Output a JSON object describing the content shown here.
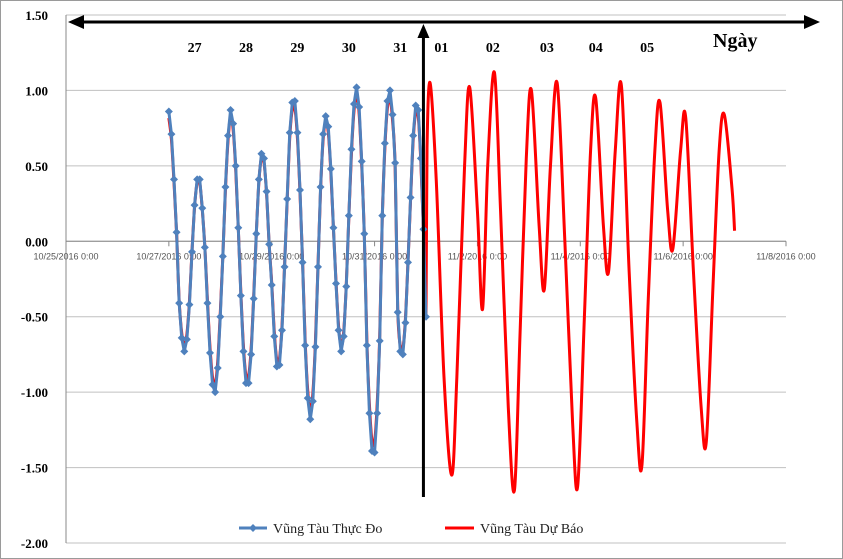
{
  "chart_data": {
    "type": "line",
    "title": "",
    "xlabel": "",
    "ylabel": "",
    "ylim": [
      -2.0,
      1.5
    ],
    "y_ticks": [
      "1.50",
      "1.00",
      "0.50",
      "0.00",
      "-0.50",
      "-1.00",
      "-1.50",
      "-2.00"
    ],
    "y_tick_values": [
      1.5,
      1.0,
      0.5,
      0.0,
      -0.5,
      -1.0,
      -1.5,
      -2.0
    ],
    "x_tick_labels": [
      "10/25/2016 0:00",
      "10/27/2016 0:00",
      "10/29/2016 0:00",
      "10/31/2016 0:00",
      "11/2/2016 0:00",
      "11/4/2016 0:00",
      "11/6/2016 0:00",
      "11/8/2016 0:00"
    ],
    "x_tick_values": [
      0,
      2,
      4,
      6,
      8,
      10,
      12,
      14
    ],
    "day_labels": [
      "27",
      "28",
      "29",
      "30",
      "31",
      "01",
      "02",
      "03",
      "04",
      "05"
    ],
    "day_label_values": [
      2.5,
      3.5,
      4.5,
      5.5,
      6.5,
      7.3,
      8.3,
      9.35,
      10.3,
      11.3
    ],
    "axis_title": "Ngày",
    "divider_x": 6.95,
    "observed_series": {
      "name": "Vũng Tàu Thực Đo",
      "color": "#4f81bd",
      "x": [
        2.0,
        2.05,
        2.1,
        2.15,
        2.2,
        2.25,
        2.3,
        2.35,
        2.4,
        2.45,
        2.5,
        2.55,
        2.6,
        2.65,
        2.7,
        2.75,
        2.8,
        2.85,
        2.9,
        2.95,
        3.0,
        3.05,
        3.1,
        3.15,
        3.2,
        3.25,
        3.3,
        3.35,
        3.4,
        3.45,
        3.5,
        3.55,
        3.6,
        3.65,
        3.7,
        3.75,
        3.8,
        3.85,
        3.9,
        3.95,
        4.0,
        4.05,
        4.1,
        4.15,
        4.2,
        4.25,
        4.3,
        4.35,
        4.4,
        4.45,
        4.5,
        4.55,
        4.6,
        4.65,
        4.7,
        4.75,
        4.8,
        4.85,
        4.9,
        4.95,
        5.0,
        5.05,
        5.1,
        5.15,
        5.2,
        5.25,
        5.3,
        5.35,
        5.4,
        5.45,
        5.5,
        5.55,
        5.6,
        5.65,
        5.7,
        5.75,
        5.8,
        5.85,
        5.9,
        5.95,
        6.0,
        6.05,
        6.1,
        6.15,
        6.2,
        6.25,
        6.3,
        6.35,
        6.4,
        6.45,
        6.5,
        6.55,
        6.6,
        6.65,
        6.7,
        6.75,
        6.8,
        6.85,
        6.9,
        6.95,
        7.0
      ],
      "y": [
        0.86,
        0.71,
        0.41,
        0.06,
        -0.41,
        -0.64,
        -0.73,
        -0.65,
        -0.42,
        -0.07,
        0.24,
        0.41,
        0.41,
        0.22,
        -0.04,
        -0.41,
        -0.74,
        -0.95,
        -1.0,
        -0.84,
        -0.5,
        -0.1,
        0.36,
        0.7,
        0.87,
        0.78,
        0.5,
        0.09,
        -0.36,
        -0.73,
        -0.94,
        -0.94,
        -0.75,
        -0.38,
        0.05,
        0.41,
        0.58,
        0.55,
        0.33,
        -0.02,
        -0.29,
        -0.63,
        -0.83,
        -0.82,
        -0.59,
        -0.17,
        0.28,
        0.72,
        0.92,
        0.93,
        0.72,
        0.34,
        -0.14,
        -0.69,
        -1.04,
        -1.18,
        -1.06,
        -0.7,
        -0.17,
        0.36,
        0.71,
        0.83,
        0.76,
        0.48,
        0.09,
        -0.28,
        -0.59,
        -0.73,
        -0.63,
        -0.3,
        0.17,
        0.61,
        0.91,
        1.02,
        0.89,
        0.53,
        0.05,
        -0.69,
        -1.14,
        -1.39,
        -1.4,
        -1.14,
        -0.66,
        0.17,
        0.65,
        0.93,
        1.0,
        0.84,
        0.52,
        -0.47,
        -0.73,
        -0.75,
        -0.54,
        -0.14,
        0.29,
        0.7,
        0.9,
        0.87,
        0.55,
        0.08,
        -0.5
      ]
    },
    "forecast_series": {
      "name": "Vũng Tàu Dự Báo",
      "color": "#ff0000"
    },
    "legend": [
      "Vũng Tàu Thực Đo",
      "Vũng Tàu Dự Báo"
    ],
    "legend_position": "bottom-center"
  }
}
